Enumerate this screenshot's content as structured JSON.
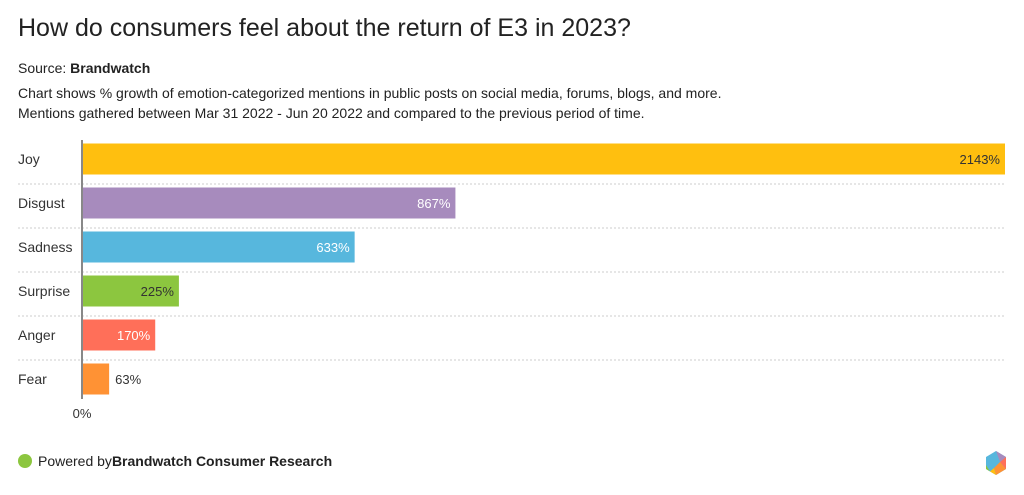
{
  "title": "How do consumers feel about the return of E3 in 2023?",
  "source_label": "Source: ",
  "source_name": "Brandwatch",
  "description_lines": [
    "Chart shows % growth of emotion-categorized mentions in public posts on social media, forums, blogs, and more.",
    "Mentions gathered between Mar 31 2022 - Jun 20 2022 and compared to the previous period of time."
  ],
  "footer": {
    "prefix": "Powered by ",
    "brand": "Brandwatch Consumer Research",
    "dot_color": "#8cc63f"
  },
  "chart_data": {
    "type": "bar",
    "orientation": "horizontal",
    "categories": [
      "Joy",
      "Disgust",
      "Sadness",
      "Surprise",
      "Anger",
      "Fear"
    ],
    "values": [
      2143,
      867,
      633,
      225,
      170,
      63
    ],
    "data_labels": [
      "2143%",
      "867%",
      "633%",
      "225%",
      "170%",
      "63%"
    ],
    "colors": [
      "#ffbf0f",
      "#a78bbd",
      "#57b7dd",
      "#8cc63f",
      "#ff6f59",
      "#ff9234"
    ],
    "label_colors": [
      "#333333",
      "#ffffff",
      "#ffffff",
      "#333333",
      "#ffffff",
      "#333333"
    ],
    "x_tick_labels": [
      "0%"
    ],
    "xlim": [
      0,
      2143
    ],
    "grid": "dotted row separators"
  }
}
